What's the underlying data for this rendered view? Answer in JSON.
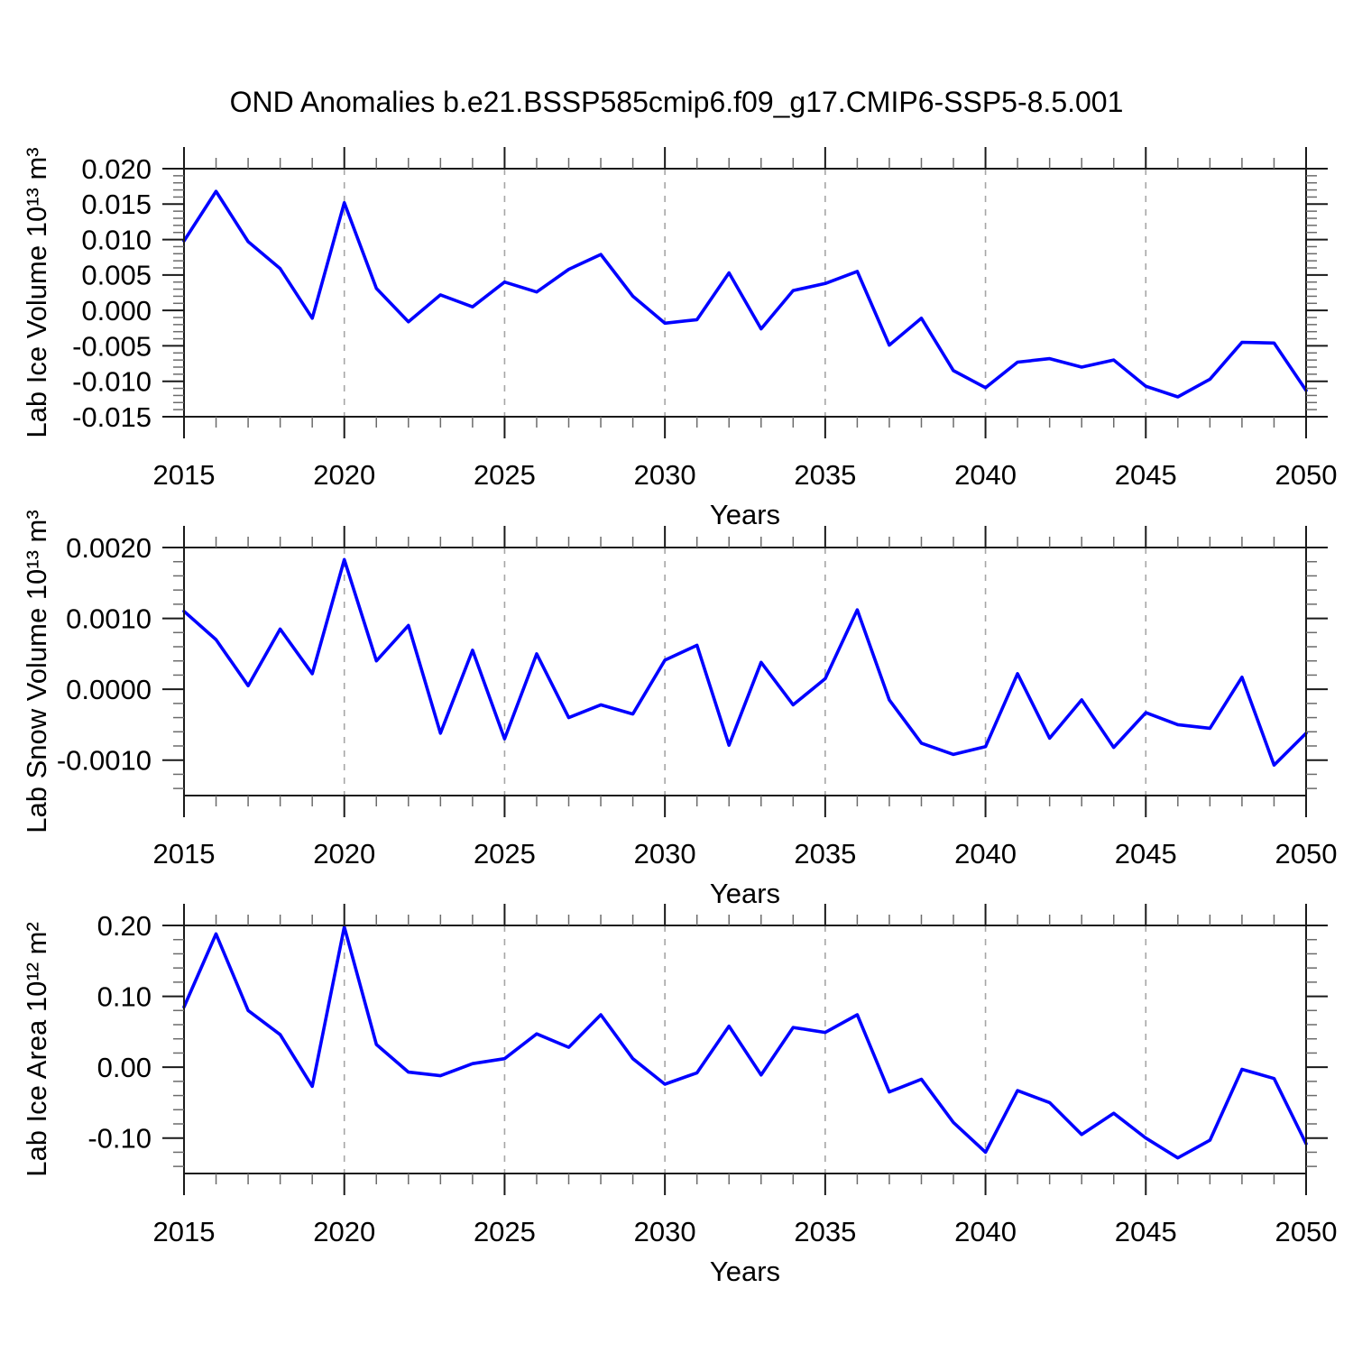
{
  "chart_data": {
    "type": "line",
    "title": "OND Anomalies b.e21.BSSP585cmip6.f09_g17.CMIP6-SSP5-8.5.001",
    "xlabel": "Years",
    "xlim": [
      2015,
      2050
    ],
    "x": [
      2015,
      2016,
      2017,
      2018,
      2019,
      2020,
      2021,
      2022,
      2023,
      2024,
      2025,
      2026,
      2027,
      2028,
      2029,
      2030,
      2031,
      2032,
      2033,
      2034,
      2035,
      2036,
      2037,
      2038,
      2039,
      2040,
      2041,
      2042,
      2043,
      2044,
      2045,
      2046,
      2047,
      2048,
      2049,
      2050
    ],
    "x_major_ticks": [
      {
        "label": "2015",
        "value": 2015
      },
      {
        "label": "2020",
        "value": 2020
      },
      {
        "label": "2025",
        "value": 2025
      },
      {
        "label": "2030",
        "value": 2030
      },
      {
        "label": "2035",
        "value": 2035
      },
      {
        "label": "2040",
        "value": 2040
      },
      {
        "label": "2045",
        "value": 2045
      },
      {
        "label": "2050",
        "value": 2050
      }
    ],
    "x_minor_step": 1,
    "x_gridlines": [
      2020,
      2025,
      2030,
      2035,
      2040,
      2045
    ],
    "line_color": "#0000ff",
    "grid_color": "#a6a6a6",
    "legend": "none",
    "panels": [
      {
        "ylabel": "Lab Ice Volume 10¹³ m³",
        "ylim": [
          -0.015,
          0.02
        ],
        "y_minor_step": 0.001,
        "y_ticks": [
          {
            "label": "0.020",
            "value": 0.02
          },
          {
            "label": "0.015",
            "value": 0.015
          },
          {
            "label": "0.010",
            "value": 0.01
          },
          {
            "label": "0.005",
            "value": 0.005
          },
          {
            "label": "0.000",
            "value": 0.0
          },
          {
            "label": "-0.005",
            "value": -0.005
          },
          {
            "label": "-0.010",
            "value": -0.01
          },
          {
            "label": "-0.015",
            "value": -0.015
          }
        ],
        "values": [
          0.0098,
          0.0168,
          0.0097,
          0.0059,
          -0.0011,
          0.0152,
          0.0031,
          -0.0016,
          0.0022,
          0.0005,
          0.004,
          0.0026,
          0.0058,
          0.0079,
          0.002,
          -0.0018,
          -0.0013,
          0.0053,
          -0.0026,
          0.0028,
          0.0038,
          0.0055,
          -0.0049,
          -0.0011,
          -0.0085,
          -0.0109,
          -0.0073,
          -0.0068,
          -0.008,
          -0.007,
          -0.0107,
          -0.0122,
          -0.0097,
          -0.0045,
          -0.0046,
          -0.0113
        ]
      },
      {
        "ylabel": "Lab Snow Volume 10¹³ m³",
        "ylim": [
          -0.0015,
          0.002
        ],
        "y_minor_step": 0.0002,
        "y_ticks": [
          {
            "label": "0.0020",
            "value": 0.002
          },
          {
            "label": "0.0010",
            "value": 0.001
          },
          {
            "label": "0.0000",
            "value": 0.0
          },
          {
            "label": "-0.0010",
            "value": -0.001
          }
        ],
        "values": [
          0.0011,
          0.0007,
          5e-05,
          0.00085,
          0.00022,
          0.00183,
          0.0004,
          0.0009,
          -0.00062,
          0.00055,
          -0.0007,
          0.0005,
          -0.0004,
          -0.00022,
          -0.00035,
          0.00041,
          0.00062,
          -0.00079,
          0.00038,
          -0.00022,
          0.00015,
          0.00112,
          -0.00015,
          -0.00076,
          -0.00092,
          -0.00081,
          0.00022,
          -0.00069,
          -0.00015,
          -0.00082,
          -0.00033,
          -0.0005,
          -0.00055,
          0.00017,
          -0.00107,
          -0.00062
        ]
      },
      {
        "ylabel": "Lab Ice Area 10¹² m²",
        "ylim": [
          -0.15,
          0.2
        ],
        "y_minor_step": 0.02,
        "y_ticks": [
          {
            "label": "0.20",
            "value": 0.2
          },
          {
            "label": "0.10",
            "value": 0.1
          },
          {
            "label": "0.00",
            "value": 0.0
          },
          {
            "label": "-0.10",
            "value": -0.1
          }
        ],
        "values": [
          0.085,
          0.188,
          0.08,
          0.046,
          -0.027,
          0.198,
          0.032,
          -0.007,
          -0.012,
          0.005,
          0.012,
          0.047,
          0.028,
          0.074,
          0.012,
          -0.024,
          -0.008,
          0.058,
          -0.011,
          0.056,
          0.049,
          0.074,
          -0.035,
          -0.017,
          -0.078,
          -0.12,
          -0.033,
          -0.05,
          -0.095,
          -0.065,
          -0.1,
          -0.128,
          -0.103,
          -0.003,
          -0.016,
          -0.108
        ]
      }
    ]
  }
}
